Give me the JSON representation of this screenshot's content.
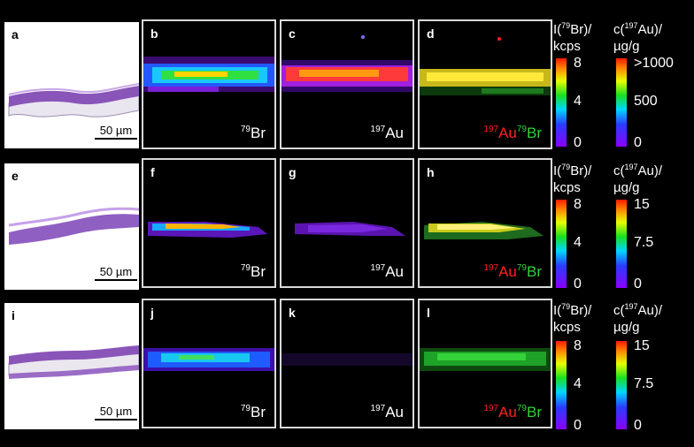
{
  "rows": [
    {
      "histology": {
        "label": "a",
        "scale": "50 µm"
      },
      "maps": [
        {
          "label": "b",
          "type": "br",
          "mass": "79",
          "element": "Br"
        },
        {
          "label": "c",
          "type": "au",
          "mass": "197",
          "element": "Au"
        },
        {
          "label": "d",
          "type": "overlay",
          "au_mass": "197",
          "au_el": "Au",
          "br_mass": "79",
          "br_el": "Br"
        }
      ],
      "colorbar_br": {
        "title_pre": "I(",
        "title_sup": "79",
        "title_mid": "Br)/",
        "title_unit": "kcps",
        "ticks": [
          "8",
          "4",
          "0"
        ]
      },
      "colorbar_au": {
        "title_pre": "c(",
        "title_sup": "197",
        "title_mid": "Au)/",
        "title_unit": "µg/g",
        "ticks": [
          ">1000",
          "500",
          "0"
        ]
      }
    },
    {
      "histology": {
        "label": "e",
        "scale": "50 µm"
      },
      "maps": [
        {
          "label": "f",
          "type": "br",
          "mass": "79",
          "element": "Br"
        },
        {
          "label": "g",
          "type": "au",
          "mass": "197",
          "element": "Au"
        },
        {
          "label": "h",
          "type": "overlay",
          "au_mass": "197",
          "au_el": "Au",
          "br_mass": "79",
          "br_el": "Br"
        }
      ],
      "colorbar_br": {
        "title_pre": "I(",
        "title_sup": "79",
        "title_mid": "Br)/",
        "title_unit": "kcps",
        "ticks": [
          "8",
          "4",
          "0"
        ]
      },
      "colorbar_au": {
        "title_pre": "c(",
        "title_sup": "197",
        "title_mid": "Au)/",
        "title_unit": "µg/g",
        "ticks": [
          "15",
          "7.5",
          "0"
        ]
      }
    },
    {
      "histology": {
        "label": "i",
        "scale": "50 µm"
      },
      "maps": [
        {
          "label": "j",
          "type": "br",
          "mass": "79",
          "element": "Br"
        },
        {
          "label": "k",
          "type": "au",
          "mass": "197",
          "element": "Au"
        },
        {
          "label": "l",
          "type": "overlay",
          "au_mass": "197",
          "au_el": "Au",
          "br_mass": "79",
          "br_el": "Br"
        }
      ],
      "colorbar_br": {
        "title_pre": "I(",
        "title_sup": "79",
        "title_mid": "Br)/",
        "title_unit": "kcps",
        "ticks": [
          "8",
          "4",
          "0"
        ]
      },
      "colorbar_au": {
        "title_pre": "c(",
        "title_sup": "197",
        "title_mid": "Au)/",
        "title_unit": "µg/g",
        "ticks": [
          "15",
          "7.5",
          "0"
        ]
      }
    }
  ]
}
